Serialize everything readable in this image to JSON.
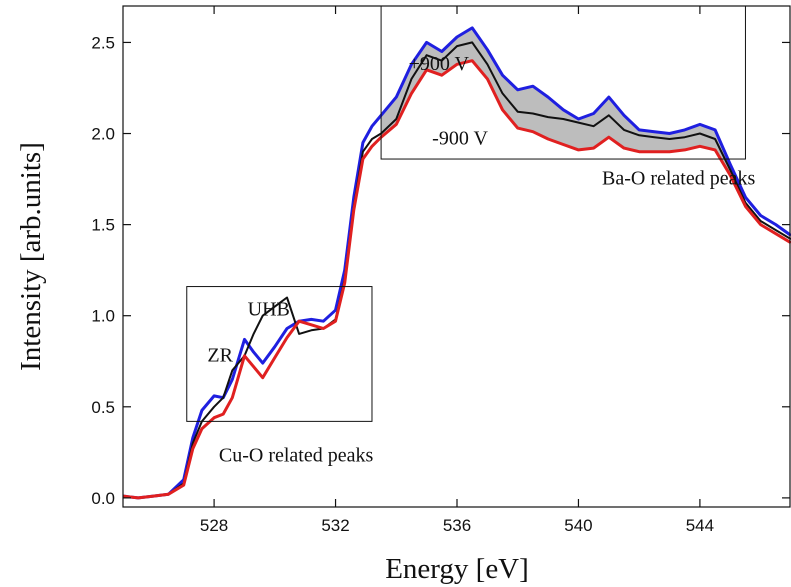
{
  "chart_data": {
    "type": "line",
    "title": "",
    "xlabel": "Energy [eV]",
    "ylabel": "Intensity [arb.units]",
    "xlim": [
      525,
      547
    ],
    "ylim": [
      -0.05,
      2.7
    ],
    "x_ticks": [
      528,
      532,
      536,
      540,
      544
    ],
    "x_tick_labels": [
      "528",
      "532",
      "536",
      "540",
      "544"
    ],
    "y_ticks": [
      0.0,
      0.5,
      1.0,
      1.5,
      2.0,
      2.5
    ],
    "y_tick_labels": [
      "0.0",
      "0.5",
      "1.0",
      "1.5",
      "2.0",
      "2.5"
    ],
    "grid": false,
    "legend": "none",
    "series": [
      {
        "color": "#1f1fe0",
        "x": [
          525,
          525.5,
          526,
          526.5,
          527,
          527.3,
          527.6,
          528,
          528.3,
          528.6,
          529,
          529.3,
          529.6,
          530,
          530.4,
          530.8,
          531.2,
          531.6,
          532,
          532.3,
          532.6,
          532.9,
          533.2,
          533.5,
          534,
          534.5,
          535,
          535.5,
          536,
          536.5,
          537,
          537.5,
          538,
          538.5,
          539,
          539.5,
          540,
          540.5,
          541,
          541.5,
          542,
          542.5,
          543,
          543.5,
          544,
          544.5,
          545,
          545.5,
          546,
          546.5,
          547
        ],
        "y": [
          0.01,
          0.0,
          0.01,
          0.02,
          0.1,
          0.33,
          0.48,
          0.56,
          0.55,
          0.65,
          0.87,
          0.8,
          0.74,
          0.83,
          0.93,
          0.97,
          0.98,
          0.97,
          1.03,
          1.25,
          1.65,
          1.95,
          2.04,
          2.1,
          2.2,
          2.38,
          2.5,
          2.45,
          2.53,
          2.58,
          2.46,
          2.32,
          2.24,
          2.26,
          2.2,
          2.13,
          2.08,
          2.11,
          2.2,
          2.1,
          2.02,
          2.01,
          2.0,
          2.02,
          2.05,
          2.02,
          1.83,
          1.65,
          1.55,
          1.5,
          1.44
        ]
      },
      {
        "color": "#111111",
        "x": [
          525,
          525.5,
          526,
          526.5,
          527,
          527.3,
          527.6,
          528,
          528.3,
          528.6,
          529,
          529.3,
          529.6,
          530,
          530.4,
          530.8,
          531.2,
          531.6,
          532,
          532.3,
          532.6,
          532.9,
          533.2,
          533.5,
          534,
          534.5,
          535,
          535.5,
          536,
          536.5,
          537,
          537.5,
          538,
          538.5,
          539,
          539.5,
          540,
          540.5,
          541,
          541.5,
          542,
          542.5,
          543,
          543.5,
          544,
          544.5,
          545,
          545.5,
          546,
          546.5,
          547
        ],
        "y": [
          0.01,
          0.0,
          0.01,
          0.02,
          0.08,
          0.3,
          0.42,
          0.5,
          0.55,
          0.7,
          0.78,
          0.9,
          1.0,
          1.05,
          1.1,
          0.9,
          0.92,
          0.93,
          0.98,
          1.2,
          1.6,
          1.9,
          1.97,
          2.0,
          2.08,
          2.3,
          2.43,
          2.4,
          2.48,
          2.5,
          2.38,
          2.22,
          2.12,
          2.11,
          2.09,
          2.08,
          2.06,
          2.04,
          2.1,
          2.02,
          1.99,
          1.98,
          1.97,
          1.98,
          2.0,
          1.97,
          1.8,
          1.62,
          1.52,
          1.47,
          1.42
        ]
      },
      {
        "color": "#e02020",
        "x": [
          525,
          525.5,
          526,
          526.5,
          527,
          527.3,
          527.6,
          528,
          528.3,
          528.6,
          529,
          529.3,
          529.6,
          530,
          530.4,
          530.8,
          531.2,
          531.6,
          532,
          532.3,
          532.6,
          532.9,
          533.2,
          533.5,
          534,
          534.5,
          535,
          535.5,
          536,
          536.5,
          537,
          537.5,
          538,
          538.5,
          539,
          539.5,
          540,
          540.5,
          541,
          541.5,
          542,
          542.5,
          543,
          543.5,
          544,
          544.5,
          545,
          545.5,
          546,
          546.5,
          547
        ],
        "y": [
          0.01,
          0.0,
          0.01,
          0.02,
          0.07,
          0.27,
          0.38,
          0.44,
          0.46,
          0.55,
          0.78,
          0.72,
          0.66,
          0.77,
          0.88,
          0.97,
          0.95,
          0.93,
          0.97,
          1.18,
          1.58,
          1.86,
          1.93,
          1.98,
          2.05,
          2.22,
          2.35,
          2.32,
          2.38,
          2.4,
          2.3,
          2.13,
          2.03,
          2.01,
          1.97,
          1.94,
          1.91,
          1.92,
          1.98,
          1.92,
          1.9,
          1.9,
          1.9,
          1.91,
          1.93,
          1.91,
          1.77,
          1.6,
          1.5,
          1.45,
          1.4
        ]
      }
    ],
    "annotations": [
      {
        "text": "+900 V",
        "x": 535.4,
        "y": 2.35
      },
      {
        "text": "-900 V",
        "x": 536.1,
        "y": 1.94
      },
      {
        "text": "Ba-O related peaks",
        "x": 543.3,
        "y": 1.72
      },
      {
        "text": "UHB",
        "x": 529.8,
        "y": 1.0
      },
      {
        "text": "ZR",
        "x": 528.2,
        "y": 0.75
      },
      {
        "text": "Cu-O related peaks",
        "x": 530.7,
        "y": 0.2
      }
    ],
    "boxes": [
      {
        "x0": 533.5,
        "x1": 545.5,
        "y0": 1.86,
        "y1": 2.7
      },
      {
        "x0": 527.1,
        "x1": 533.2,
        "y0": 0.42,
        "y1": 1.16
      }
    ],
    "shaded_between": {
      "upper_series": 0,
      "lower_series": 2,
      "x0": 533.5,
      "x1": 545,
      "color": "#bdbdbd"
    }
  }
}
